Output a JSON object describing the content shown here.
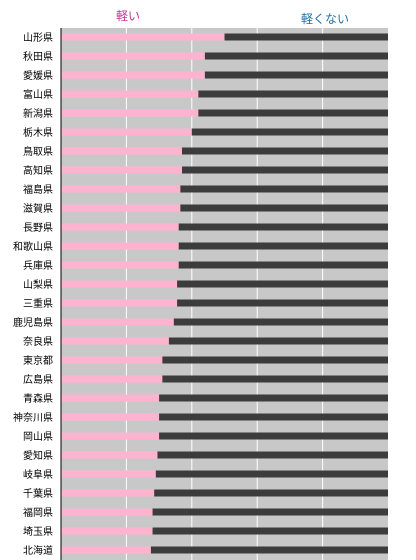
{
  "chart_data": {
    "type": "bar",
    "stacked": true,
    "orientation": "horizontal",
    "legend": [
      "軽い",
      "軽くない"
    ],
    "colors": {
      "light": "#ffb3cf",
      "dark": "#3c3c3c",
      "background": "#c8c8c8",
      "light_label": "#c0369a",
      "dark_label": "#1f6fa8"
    },
    "xlim": [
      0,
      1
    ],
    "grid": true,
    "categories": [
      "山形県",
      "秋田県",
      "愛媛県",
      "富山県",
      "新潟県",
      "栃木県",
      "鳥取県",
      "高知県",
      "福島県",
      "滋賀県",
      "長野県",
      "和歌山県",
      "兵庫県",
      "山梨県",
      "三重県",
      "鹿児島県",
      "奈良県",
      "東京都",
      "広島県",
      "青森県",
      "神奈川県",
      "岡山県",
      "愛知県",
      "岐阜県",
      "千葉県",
      "福岡県",
      "埼玉県",
      "北海道"
    ],
    "series": [
      {
        "name": "軽い",
        "values": [
          0.5,
          0.44,
          0.44,
          0.42,
          0.42,
          0.4,
          0.37,
          0.37,
          0.365,
          0.365,
          0.36,
          0.36,
          0.36,
          0.355,
          0.355,
          0.345,
          0.33,
          0.31,
          0.31,
          0.3,
          0.3,
          0.3,
          0.295,
          0.29,
          0.285,
          0.28,
          0.28,
          0.275
        ]
      },
      {
        "name": "軽くない",
        "values": [
          0.5,
          0.56,
          0.56,
          0.58,
          0.58,
          0.6,
          0.63,
          0.63,
          0.635,
          0.635,
          0.64,
          0.64,
          0.64,
          0.645,
          0.645,
          0.655,
          0.67,
          0.69,
          0.69,
          0.7,
          0.7,
          0.7,
          0.705,
          0.71,
          0.715,
          0.72,
          0.72,
          0.725
        ]
      }
    ]
  }
}
